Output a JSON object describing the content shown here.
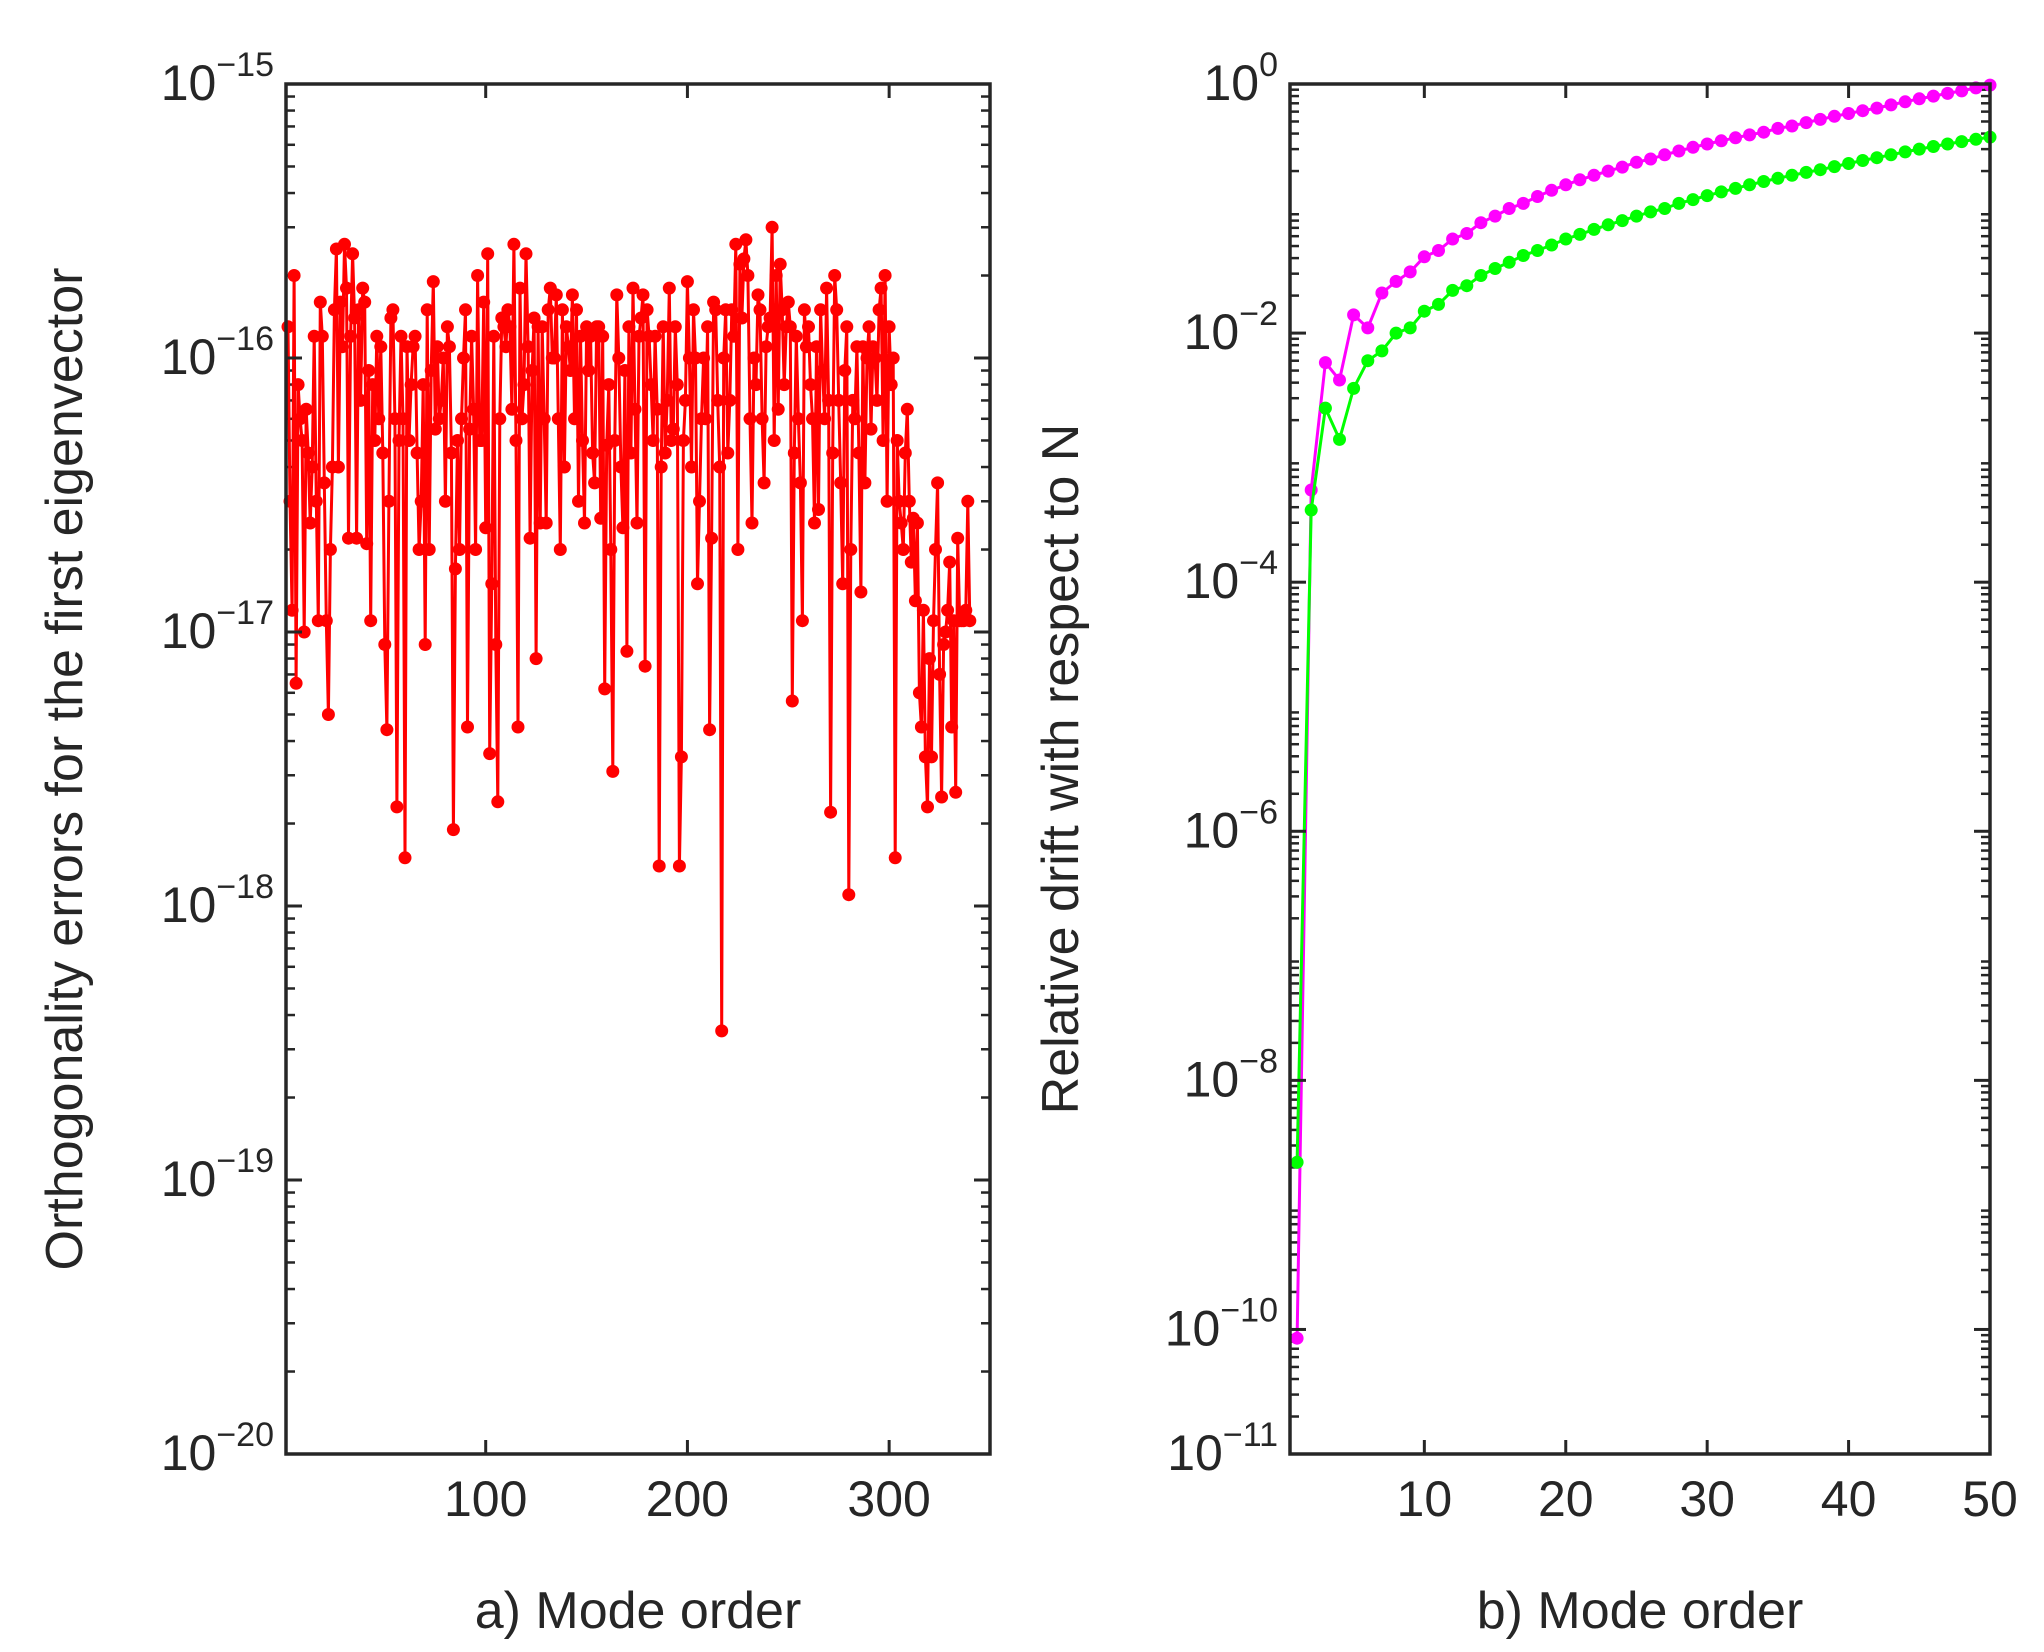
{
  "chart_data": [
    {
      "type": "line",
      "panel": "a",
      "title": "",
      "xlabel": "a) Mode order",
      "ylabel": "Orthogonality errors for the first eigenvector",
      "yscale": "log",
      "xlim": [
        1,
        350
      ],
      "ylim": [
        1e-20,
        1e-15
      ],
      "xticks": [
        100,
        200,
        300
      ],
      "yticks": [
        {
          "base": "10",
          "exp": "-20"
        },
        {
          "base": "10",
          "exp": "-19"
        },
        {
          "base": "10",
          "exp": "-18"
        },
        {
          "base": "10",
          "exp": "-17"
        },
        {
          "base": "10",
          "exp": "-16"
        },
        {
          "base": "10",
          "exp": "-15"
        }
      ],
      "series": [
        {
          "name": "orthogonality error",
          "color": "#ff0000",
          "marker": "dot",
          "x_start": 2,
          "values": [
            1.3e-16,
            3e-17,
            1.2e-17,
            2e-16,
            6.5e-18,
            8e-17,
            6e-17,
            5e-17,
            1e-17,
            6.5e-17,
            4.5e-17,
            2.5e-17,
            4e-17,
            1.2e-16,
            3e-17,
            1.1e-17,
            1.6e-16,
            1.2e-16,
            3.5e-17,
            1.1e-17,
            5e-18,
            2e-17,
            4e-17,
            1.5e-16,
            2.5e-16,
            4e-17,
            1.6e-16,
            1.1e-16,
            2.6e-16,
            1.8e-16,
            2.2e-17,
            1.2e-16,
            2.4e-16,
            1.4e-16,
            2.2e-17,
            1.5e-16,
            7e-17,
            1.8e-16,
            1.6e-16,
            2.1e-17,
            9e-17,
            1.1e-17,
            8e-17,
            5e-17,
            1.2e-16,
            6e-17,
            1.1e-16,
            4.5e-17,
            9e-18,
            4.4e-18,
            3e-17,
            1.4e-16,
            1.5e-16,
            6e-17,
            2.3e-18,
            5e-17,
            1.2e-16,
            6e-17,
            1.5e-18,
            1.1e-16,
            5e-17,
            8e-17,
            1.1e-16,
            1.2e-16,
            4.5e-17,
            2e-17,
            3e-17,
            8e-17,
            9e-18,
            1.5e-16,
            2e-17,
            9e-17,
            1.9e-16,
            5.5e-17,
            1.1e-16,
            6e-17,
            7e-17,
            1e-16,
            3e-17,
            1.3e-16,
            1.1e-16,
            4.5e-17,
            1.9e-18,
            1.7e-17,
            5e-17,
            2e-17,
            6e-17,
            1e-16,
            1.5e-16,
            4.5e-18,
            5.5e-17,
            1.2e-16,
            6.5e-17,
            2e-17,
            2e-16,
            5e-17,
            5e-17,
            1.6e-16,
            2.4e-17,
            2.4e-16,
            3.6e-18,
            1.5e-17,
            1.2e-16,
            9e-18,
            2.4e-18,
            6e-17,
            1.4e-16,
            1.3e-16,
            1.1e-16,
            1.5e-16,
            1.3e-16,
            6.5e-17,
            2.6e-16,
            5e-17,
            4.5e-18,
            1.8e-16,
            6e-17,
            8e-17,
            2.4e-16,
            1.1e-16,
            2.2e-17,
            9e-17,
            1.4e-16,
            8e-18,
            1.3e-16,
            2.5e-17,
            1.3e-16,
            6e-17,
            2.5e-17,
            1.5e-16,
            1.8e-16,
            1e-16,
            1e-16,
            1.7e-16,
            6e-17,
            2e-17,
            1.5e-16,
            4e-17,
            1.3e-16,
            1.1e-16,
            9e-17,
            1.7e-16,
            6e-17,
            1.5e-16,
            3e-17,
            1.2e-16,
            5e-17,
            2.5e-17,
            1.3e-16,
            9e-17,
            1.2e-16,
            4.5e-17,
            3.5e-17,
            1.3e-16,
            1.3e-16,
            2.6e-17,
            1.2e-16,
            6.2e-18,
            4.8e-17,
            8e-17,
            2e-17,
            3.1e-18,
            5e-17,
            1.7e-16,
            1e-16,
            4e-17,
            2.4e-17,
            9e-17,
            8.5e-18,
            1.3e-16,
            4.5e-17,
            1.8e-16,
            6.5e-17,
            2.5e-17,
            1.2e-16,
            1.4e-16,
            1.7e-16,
            7.5e-18,
            1.5e-16,
            1.2e-16,
            8e-17,
            5e-17,
            1.2e-16,
            6.5e-17,
            1.4e-18,
            4e-17,
            1.3e-16,
            4.5e-17,
            7e-17,
            1.8e-16,
            5e-17,
            5.5e-17,
            1.3e-16,
            8e-17,
            1.4e-18,
            3.5e-18,
            5e-17,
            7e-17,
            1.9e-16,
            1e-16,
            4e-17,
            1.5e-16,
            1e-16,
            1.5e-17,
            3e-17,
            6e-17,
            1e-16,
            6e-17,
            1.3e-16,
            4.4e-18,
            2.2e-17,
            1.6e-16,
            1.5e-16,
            7e-17,
            4e-17,
            3.5e-19,
            1e-16,
            1.5e-16,
            4.5e-17,
            7e-17,
            1.5e-16,
            1.2e-16,
            2.6e-16,
            2e-17,
            2.2e-16,
            1.4e-16,
            2.3e-16,
            2.7e-16,
            2e-16,
            6e-17,
            2.5e-17,
            1e-16,
            8e-17,
            1.7e-16,
            1.5e-16,
            6e-17,
            3.5e-17,
            1.1e-16,
            1.3e-16,
            1.4e-16,
            3e-16,
            5e-17,
            2e-16,
            6.5e-17,
            2.2e-16,
            1.5e-16,
            8e-17,
            1.3e-16,
            1.6e-16,
            1.3e-16,
            5.6e-18,
            4.5e-17,
            1.2e-16,
            6e-17,
            3.5e-17,
            1.1e-17,
            1.5e-16,
            1.1e-16,
            1.3e-16,
            8e-17,
            6e-17,
            2.5e-17,
            1.1e-16,
            2.8e-17,
            1.5e-16,
            9e-17,
            6e-17,
            1.8e-16,
            7e-17,
            2.2e-18,
            4.5e-17,
            2e-16,
            1.5e-16,
            7e-17,
            3.5e-17,
            1.5e-17,
            9e-17,
            1.3e-16,
            1.1e-18,
            2e-17,
            7e-17,
            6e-17,
            1.1e-16,
            4.5e-17,
            1.4e-17,
            1.1e-16,
            3.5e-17,
            1e-16,
            1.3e-16,
            5.5e-17,
            1.1e-16,
            1e-16,
            7e-17,
            1.5e-16,
            1.8e-16,
            5e-17,
            2e-16,
            3e-17,
            1.3e-16,
            8e-17,
            1e-16,
            1.5e-18,
            5e-17,
            3e-17,
            2.5e-17,
            2e-17,
            4.5e-17,
            6.5e-17,
            3e-17,
            1.8e-17,
            2.6e-17,
            1.3e-17,
            2.5e-17,
            6e-18,
            4.5e-18,
            1.2e-17,
            3.5e-18,
            2.3e-18,
            8e-18,
            3.5e-18,
            1.1e-17,
            2e-17,
            3.5e-17,
            7e-18,
            2.5e-18,
            9e-18,
            1e-17,
            1.2e-17,
            1.8e-17,
            4.5e-18,
            1.1e-17,
            2.6e-18,
            2.2e-17,
            1.1e-17,
            1.1e-17,
            1.1e-17,
            1.2e-17,
            3e-17,
            1.1e-17
          ]
        }
      ]
    },
    {
      "type": "line",
      "panel": "b",
      "title": "",
      "xlabel": "b) Mode order",
      "ylabel": "Relative drift with respect to N",
      "yscale": "log",
      "xlim": [
        0.5,
        50
      ],
      "ylim": [
        1e-11,
        1
      ],
      "xticks": [
        10,
        20,
        30,
        40,
        50
      ],
      "yticks": [
        {
          "base": "10",
          "exp": "-11",
          "value_exp": -11
        },
        {
          "base": "10",
          "exp": "-10",
          "value_exp": -10
        },
        {
          "base": "10",
          "exp": "-8",
          "value_exp": -8
        },
        {
          "base": "10",
          "exp": "-6",
          "value_exp": -6
        },
        {
          "base": "10",
          "exp": "-4",
          "value_exp": -4
        },
        {
          "base": "10",
          "exp": "-2",
          "value_exp": -2
        },
        {
          "base": "10",
          "exp": "0",
          "value_exp": 0
        }
      ],
      "series": [
        {
          "name": "magenta series",
          "color": "#ff00ff",
          "marker": "dot",
          "x": [
            1,
            2,
            3,
            4,
            5,
            6,
            7,
            8,
            9,
            10,
            11,
            12,
            13,
            14,
            15,
            16,
            17,
            18,
            19,
            20,
            21,
            22,
            23,
            24,
            25,
            26,
            27,
            28,
            29,
            30,
            31,
            32,
            33,
            34,
            35,
            36,
            37,
            38,
            39,
            40,
            41,
            42,
            43,
            44,
            45,
            46,
            47,
            48,
            49,
            50
          ],
          "values": [
            8.5e-11,
            0.00055,
            0.0058,
            0.0042,
            0.014,
            0.011,
            0.021,
            0.026,
            0.031,
            0.041,
            0.046,
            0.057,
            0.063,
            0.077,
            0.087,
            0.1,
            0.11,
            0.125,
            0.14,
            0.155,
            0.17,
            0.185,
            0.2,
            0.215,
            0.235,
            0.25,
            0.27,
            0.29,
            0.31,
            0.33,
            0.35,
            0.37,
            0.39,
            0.41,
            0.44,
            0.46,
            0.49,
            0.52,
            0.55,
            0.58,
            0.61,
            0.64,
            0.68,
            0.72,
            0.76,
            0.8,
            0.84,
            0.88,
            0.93,
            0.98
          ]
        },
        {
          "name": "green series",
          "color": "#00ff00",
          "marker": "dot",
          "x": [
            1,
            2,
            3,
            4,
            5,
            6,
            7,
            8,
            9,
            10,
            11,
            12,
            13,
            14,
            15,
            16,
            17,
            18,
            19,
            20,
            21,
            22,
            23,
            24,
            25,
            26,
            27,
            28,
            29,
            30,
            31,
            32,
            33,
            34,
            35,
            36,
            37,
            38,
            39,
            40,
            41,
            42,
            43,
            44,
            45,
            46,
            47,
            48,
            49,
            50
          ],
          "values": [
            2.2e-09,
            0.00038,
            0.0025,
            0.0014,
            0.0036,
            0.006,
            0.0072,
            0.01,
            0.011,
            0.015,
            0.017,
            0.022,
            0.024,
            0.029,
            0.033,
            0.037,
            0.042,
            0.046,
            0.051,
            0.057,
            0.062,
            0.068,
            0.074,
            0.08,
            0.087,
            0.094,
            0.1,
            0.11,
            0.118,
            0.127,
            0.136,
            0.145,
            0.155,
            0.165,
            0.175,
            0.185,
            0.195,
            0.205,
            0.217,
            0.23,
            0.243,
            0.256,
            0.27,
            0.285,
            0.3,
            0.315,
            0.33,
            0.345,
            0.36,
            0.375
          ]
        }
      ]
    }
  ]
}
